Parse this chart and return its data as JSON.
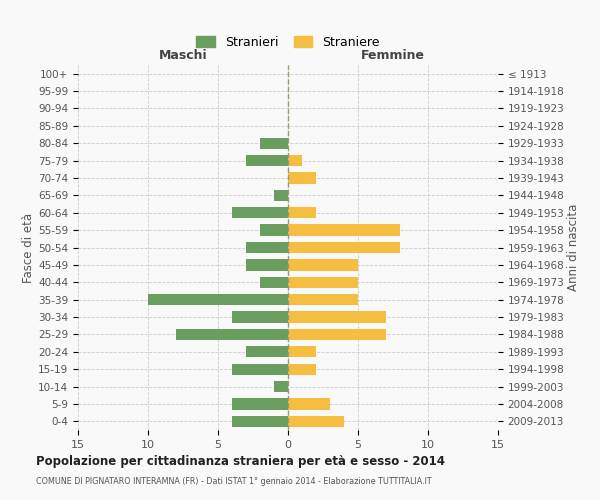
{
  "age_groups": [
    "100+",
    "95-99",
    "90-94",
    "85-89",
    "80-84",
    "75-79",
    "70-74",
    "65-69",
    "60-64",
    "55-59",
    "50-54",
    "45-49",
    "40-44",
    "35-39",
    "30-34",
    "25-29",
    "20-24",
    "15-19",
    "10-14",
    "5-9",
    "0-4"
  ],
  "birth_years": [
    "≤ 1913",
    "1914-1918",
    "1919-1923",
    "1924-1928",
    "1929-1933",
    "1934-1938",
    "1939-1943",
    "1944-1948",
    "1949-1953",
    "1954-1958",
    "1959-1963",
    "1964-1968",
    "1969-1973",
    "1974-1978",
    "1979-1983",
    "1984-1988",
    "1989-1993",
    "1994-1998",
    "1999-2003",
    "2004-2008",
    "2009-2013"
  ],
  "males": [
    0,
    0,
    0,
    0,
    2,
    3,
    0,
    1,
    4,
    2,
    3,
    3,
    2,
    10,
    4,
    8,
    3,
    4,
    1,
    4,
    4
  ],
  "females": [
    0,
    0,
    0,
    0,
    0,
    1,
    2,
    0,
    2,
    8,
    8,
    5,
    5,
    5,
    7,
    7,
    2,
    2,
    0,
    3,
    4
  ],
  "male_color": "#6a9e5f",
  "female_color": "#f5be41",
  "background_color": "#f9f9f9",
  "grid_color": "#cccccc",
  "title": "Popolazione per cittadinanza straniera per età e sesso - 2014",
  "subtitle": "COMUNE DI PIGNATARO INTERAMNA (FR) - Dati ISTAT 1° gennaio 2014 - Elaborazione TUTTITALIA.IT",
  "ylabel_left": "Fasce di età",
  "ylabel_right": "Anni di nascita",
  "xlabel_left": "Maschi",
  "xlabel_right": "Femmine",
  "legend_male": "Stranieri",
  "legend_female": "Straniere",
  "xlim": 15,
  "bar_height": 0.65
}
